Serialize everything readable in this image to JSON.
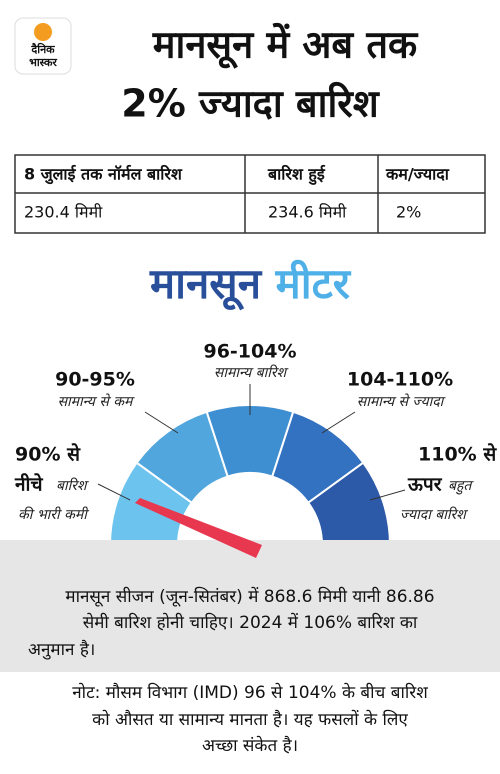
{
  "header": {
    "logo": [
      "दैनिक",
      "भास्कर"
    ],
    "title": [
      "मानसून में अब तक",
      "2% ज्यादा बारिश"
    ]
  },
  "table": {
    "headers": [
      "8 जुलाई तक नॉर्मल बारिश",
      "बारिश हुई",
      "कम/ज्यादा"
    ],
    "rows": [
      [
        "230.4 मिमी",
        "234.6 मिमी",
        "2%"
      ]
    ]
  },
  "meter": {
    "title": [
      "मानसून",
      "मीटर"
    ],
    "segments": [
      {
        "range": [
          "90% से",
          "नीचे"
        ],
        "label": [
          "बारिश",
          "की भारी कमी"
        ]
      },
      {
        "range": [
          "90-95%"
        ],
        "label": [
          "सामान्य से कम"
        ]
      },
      {
        "range": [
          "96-104%"
        ],
        "label": [
          "सामान्य बारिश"
        ]
      },
      {
        "range": [
          "104-110%"
        ],
        "label": [
          "सामान्य से ज्यादा"
        ]
      },
      {
        "range": [
          "110% से",
          "ऊपर"
        ],
        "label": [
          "बहुत",
          "ज्यादा बारिश"
        ]
      }
    ]
  },
  "summary": [
    "मानसून सीजन (जून-सितंबर) में 868.6 मिमी यानी 86.86",
    "सेमी बारिश होनी चाहिए। 2024 में 106% बारिश का",
    "अनुमान है।"
  ],
  "note": [
    "नोट: मौसम विभाग (IMD) 96 से 104% के बीच बारिश",
    "को औसत या सामान्य मानता है। यह फसलों के लिए",
    "अच्छा संकेत है।"
  ]
}
